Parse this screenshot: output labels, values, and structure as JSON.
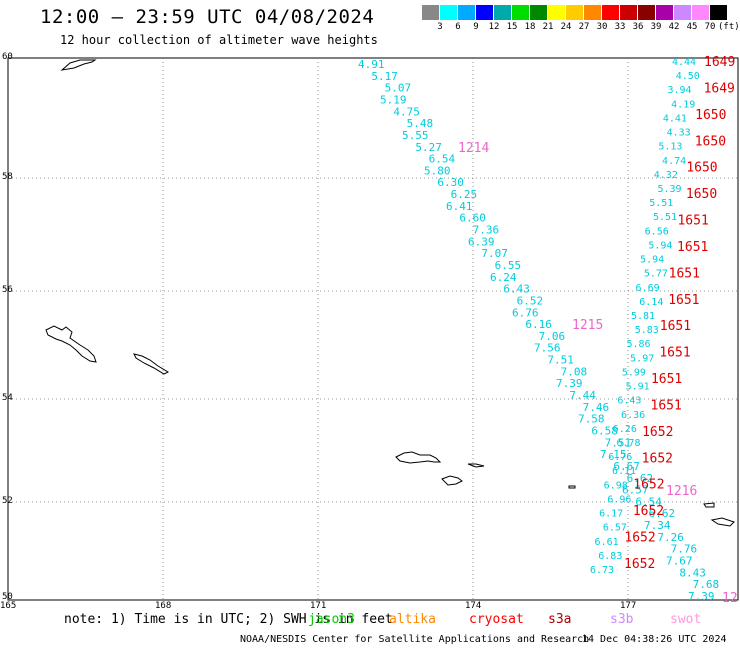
{
  "title": "12:00 — 23:59 UTC 04/08/2024",
  "subtitle": "12 hour collection of altimeter wave heights",
  "scale": {
    "colors": [
      "#888888",
      "#00ffff",
      "#00aaff",
      "#0000ff",
      "#00aaaa",
      "#00dd00",
      "#008800",
      "#ffff00",
      "#ffcc00",
      "#ff8800",
      "#ff0000",
      "#cc0000",
      "#880000",
      "#aa00aa",
      "#cc88ff",
      "#ff88ff",
      "#000000"
    ],
    "labels": [
      "3",
      "6",
      "9",
      "12",
      "15",
      "18",
      "21",
      "24",
      "27",
      "30",
      "33",
      "36",
      "39",
      "42",
      "45",
      "70",
      "(ft)"
    ]
  },
  "axes": {
    "lat_labels": [
      "60",
      "58",
      "56",
      "54",
      "52",
      "50"
    ],
    "lon_labels": [
      "165",
      "168",
      "171",
      "174",
      "177"
    ]
  },
  "tracks": {
    "jason3_color": "#00ccdd",
    "cryosat_color": "#dd0000",
    "swot_color": "#ee66cc",
    "track_a": [
      "4.91",
      "5.17",
      "5.07",
      "5.19",
      "4.75",
      "5.48",
      "5.55",
      "5.27",
      "6.54",
      "5.80",
      "6.30",
      "6.25",
      "6.41",
      "6.60",
      "7.36",
      "6.39",
      "7.07",
      "6.55",
      "6.24",
      "6.43",
      "6.52",
      "6.76",
      "6.16",
      "7.06",
      "7.56",
      "7.51",
      "7.08",
      "7.39",
      "7.44",
      "7.46",
      "7.58",
      "6.58",
      "7.51",
      "7.15",
      "6.67",
      "6.62",
      "6.57",
      "6.54",
      "6.62",
      "7.34",
      "7.26",
      "7.76",
      "7.67",
      "8.43",
      "7.68",
      "7.39"
    ],
    "track_b": [
      "4.44",
      "4.50",
      "3.94",
      "4.19",
      "4.41",
      "4.33",
      "5.13",
      "4.74",
      "4.32",
      "5.39",
      "5.51",
      "5.51",
      "6.56",
      "5.94",
      "5.94",
      "5.77",
      "6.69",
      "6.14",
      "5.81",
      "5.83",
      "5.86",
      "5.97",
      "5.99",
      "5.91",
      "6.43",
      "6.36",
      "6.26",
      "6.78",
      "6.76",
      "6.11",
      "6.98",
      "6.96",
      "6.17",
      "6.57",
      "6.61",
      "6.83",
      "6.73"
    ],
    "red_labels": [
      "1649",
      "1649",
      "1650",
      "1650",
      "1650",
      "1650",
      "1651",
      "1651",
      "1651",
      "1651",
      "1651",
      "1651",
      "1651",
      "1651",
      "1652",
      "1652",
      "1652",
      "1652",
      "1652",
      "1652"
    ],
    "pink_labels": [
      "1214",
      "1215",
      "1216",
      "12"
    ]
  },
  "note": "note: 1) Time is in UTC; 2) SWH is in feet",
  "legend": [
    {
      "label": "jason3",
      "color": "#00cc00"
    },
    {
      "label": "altika",
      "color": "#ff8800"
    },
    {
      "label": "cryosat",
      "color": "#ff0000"
    },
    {
      "label": "s3a",
      "color": "#aa0000"
    },
    {
      "label": "s3b",
      "color": "#cc88ff"
    },
    {
      "label": "swot",
      "color": "#ff99dd"
    }
  ],
  "credit": "NOAA/NESDIS Center for Satellite Applications and Research",
  "generated": "14 Dec 04:38:26 UTC 2024"
}
